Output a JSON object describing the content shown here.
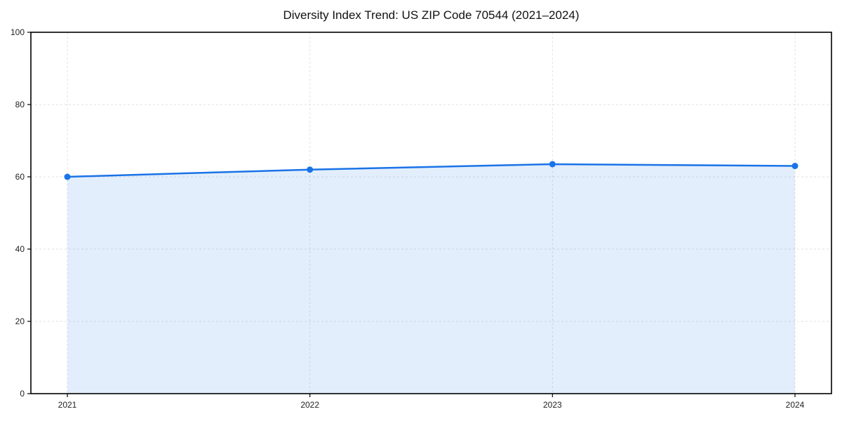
{
  "page": {
    "title": "Diversity Index Trend: US ZIP Code 70544 (2021–2024)"
  },
  "chart_data": {
    "type": "area",
    "title": "Diversity Index Trend: US ZIP Code 70544 (2021–2024)",
    "x": [
      2021,
      2022,
      2023,
      2024
    ],
    "categories": [
      "2021",
      "2022",
      "2023",
      "2024"
    ],
    "series": [
      {
        "name": "Diversity Index",
        "values": [
          60,
          62,
          63.5,
          63
        ]
      }
    ],
    "xlabel": "",
    "ylabel": "",
    "ylim": [
      0,
      100
    ],
    "yticks": [
      0,
      20,
      40,
      60,
      80,
      100
    ],
    "grid": true,
    "grid_style": "dashed",
    "legend": false,
    "colors": {
      "line": "#1a73e8",
      "marker": "#1a73e8",
      "fill": "rgba(26,115,232,0.12)",
      "gridline": "#e2e2e2",
      "spine": "#000000",
      "tick_text": "#222222"
    }
  }
}
